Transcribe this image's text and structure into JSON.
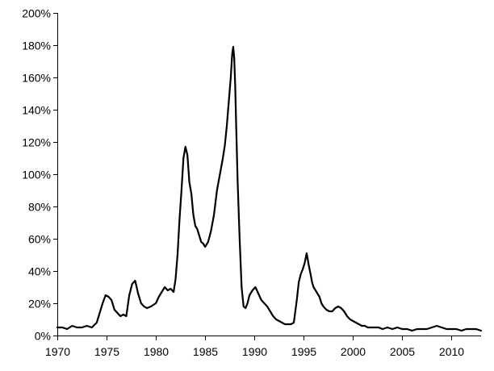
{
  "chart_data": {
    "type": "line",
    "title": "",
    "xlabel": "",
    "ylabel": "",
    "xlim": [
      1970,
      2013
    ],
    "ylim": [
      0,
      200
    ],
    "y_tick_values": [
      0,
      20,
      40,
      60,
      80,
      100,
      120,
      140,
      160,
      180,
      200
    ],
    "y_tick_labels": [
      "0%",
      "20%",
      "40%",
      "60%",
      "80%",
      "100%",
      "120%",
      "140%",
      "160%",
      "180%",
      "200%"
    ],
    "x_tick_values": [
      1970,
      1975,
      1980,
      1985,
      1990,
      1995,
      2000,
      2005,
      2010
    ],
    "x_tick_labels": [
      "1970",
      "1975",
      "1980",
      "1985",
      "1990",
      "1995",
      "2000",
      "2005",
      "2010"
    ],
    "grid": false,
    "legend": "none",
    "series": [
      {
        "color": "#000000",
        "x": [
          1970.0,
          1970.5,
          1971.0,
          1971.5,
          1972.0,
          1972.5,
          1973.0,
          1973.5,
          1974.0,
          1974.3,
          1974.6,
          1974.9,
          1975.2,
          1975.5,
          1975.8,
          1976.1,
          1976.4,
          1976.7,
          1977.0,
          1977.3,
          1977.6,
          1977.9,
          1978.2,
          1978.5,
          1978.8,
          1979.1,
          1979.5,
          1980.0,
          1980.3,
          1980.6,
          1980.9,
          1981.2,
          1981.5,
          1981.8,
          1982.0,
          1982.2,
          1982.4,
          1982.6,
          1982.8,
          1983.0,
          1983.2,
          1983.4,
          1983.6,
          1983.8,
          1984.0,
          1984.2,
          1984.4,
          1984.6,
          1984.8,
          1985.0,
          1985.3,
          1985.6,
          1985.9,
          1986.2,
          1986.5,
          1986.8,
          1987.0,
          1987.2,
          1987.4,
          1987.6,
          1987.75,
          1987.85,
          1987.95,
          1988.05,
          1988.15,
          1988.3,
          1988.5,
          1988.7,
          1988.9,
          1989.1,
          1989.3,
          1989.5,
          1989.8,
          1990.1,
          1990.4,
          1990.7,
          1991.0,
          1991.3,
          1991.6,
          1991.9,
          1992.2,
          1992.5,
          1992.8,
          1993.1,
          1993.4,
          1993.7,
          1994.0,
          1994.3,
          1994.5,
          1994.7,
          1994.9,
          1995.1,
          1995.3,
          1995.5,
          1995.7,
          1995.85,
          1996.0,
          1996.2,
          1996.4,
          1996.6,
          1996.8,
          1997.0,
          1997.3,
          1997.6,
          1997.9,
          1998.2,
          1998.5,
          1998.8,
          1999.1,
          1999.4,
          1999.7,
          2000.0,
          2000.3,
          2000.6,
          2000.9,
          2001.2,
          2001.5,
          2001.8,
          2002.2,
          2002.6,
          2003.0,
          2003.5,
          2004.0,
          2004.5,
          2005.0,
          2005.5,
          2006.0,
          2006.5,
          2007.0,
          2007.5,
          2008.0,
          2008.5,
          2009.0,
          2009.5,
          2010.0,
          2010.5,
          2011.0,
          2011.5,
          2012.0,
          2012.5,
          2013.0
        ],
        "y": [
          5,
          5,
          4,
          6,
          5,
          5,
          6,
          5,
          8,
          14,
          20,
          25,
          24,
          22,
          16,
          14,
          12,
          13,
          12,
          25,
          32,
          34,
          26,
          20,
          18,
          17,
          18,
          20,
          24,
          27,
          30,
          28,
          29,
          27,
          35,
          50,
          72,
          90,
          110,
          117,
          112,
          95,
          88,
          75,
          68,
          66,
          62,
          58,
          57,
          55,
          58,
          65,
          75,
          90,
          100,
          110,
          118,
          130,
          145,
          160,
          175,
          179,
          172,
          155,
          130,
          95,
          60,
          30,
          18,
          17,
          20,
          25,
          28,
          30,
          26,
          22,
          20,
          18,
          15,
          12,
          10,
          9,
          8,
          7,
          7,
          7,
          8,
          22,
          33,
          38,
          41,
          45,
          51,
          44,
          38,
          33,
          30,
          28,
          26,
          24,
          20,
          18,
          16,
          15,
          15,
          17,
          18,
          17,
          15,
          12,
          10,
          9,
          8,
          7,
          6,
          6,
          5,
          5,
          5,
          5,
          4,
          5,
          4,
          5,
          4,
          4,
          3,
          4,
          4,
          4,
          5,
          6,
          5,
          4,
          4,
          4,
          3,
          4,
          4,
          4,
          3
        ]
      }
    ]
  }
}
